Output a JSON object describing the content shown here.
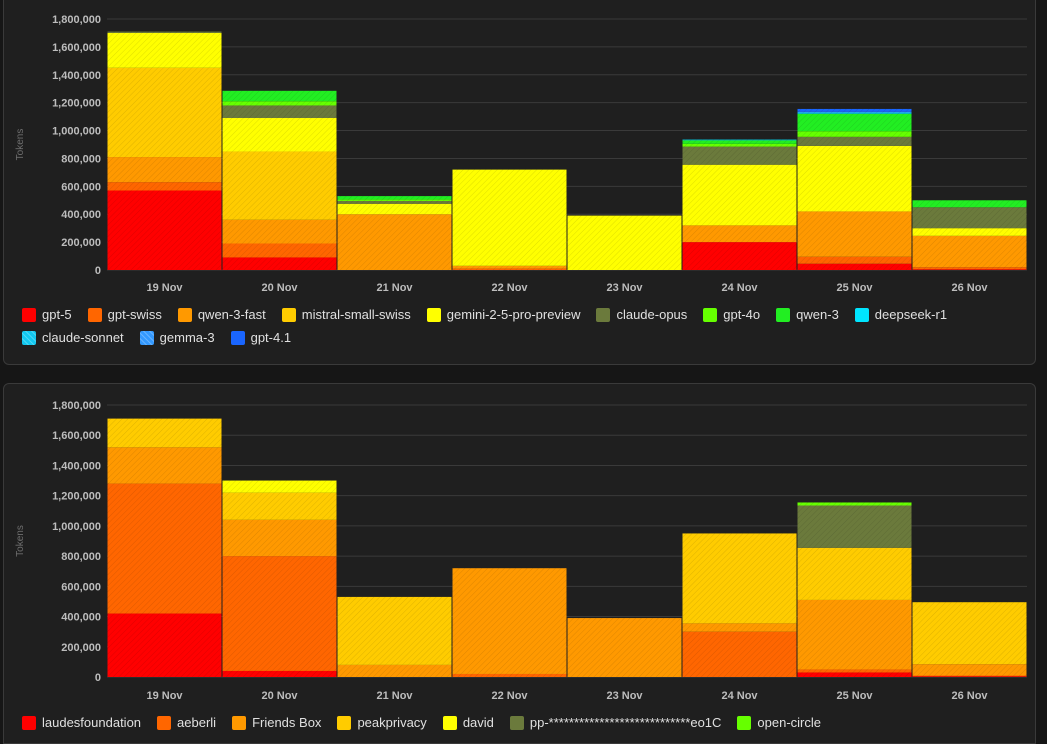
{
  "colors": {
    "grid": "#3a3a3a",
    "axis_text": "#bdbdbd",
    "ylabel_text": "#6e6e6e",
    "panel_bg": "#1f1f1f"
  },
  "chart_data": [
    {
      "type": "bar",
      "stacked": true,
      "title": "",
      "xlabel": "",
      "ylabel": "Tokens",
      "ylim": [
        0,
        1800000
      ],
      "yticks": [
        0,
        200000,
        400000,
        600000,
        800000,
        1000000,
        1200000,
        1400000,
        1600000,
        1800000
      ],
      "ytick_labels": [
        "0",
        "200,000",
        "400,000",
        "600,000",
        "800,000",
        "1,000,000",
        "1,200,000",
        "1,400,000",
        "1,600,000",
        "1,800,000"
      ],
      "categories": [
        "19 Nov",
        "20 Nov",
        "21 Nov",
        "22 Nov",
        "23 Nov",
        "24 Nov",
        "25 Nov",
        "26 Nov"
      ],
      "grid": true,
      "legend_position": "bottom",
      "series": [
        {
          "name": "gpt-5",
          "color": "#ff0000",
          "values": [
            570000,
            90000,
            0,
            0,
            0,
            200000,
            45000,
            5000
          ]
        },
        {
          "name": "gpt-swiss",
          "color": "#ff6600",
          "values": [
            60000,
            100000,
            0,
            10000,
            0,
            0,
            50000,
            15000
          ]
        },
        {
          "name": "qwen-3-fast",
          "color": "#ff9900",
          "values": [
            180000,
            170000,
            400000,
            20000,
            0,
            120000,
            325000,
            225000
          ]
        },
        {
          "name": "mistral-small-swiss",
          "color": "#ffcc00",
          "values": [
            640000,
            490000,
            0,
            0,
            0,
            0,
            0,
            0
          ]
        },
        {
          "name": "gemini-2-5-pro-preview",
          "color": "#ffff00",
          "values": [
            250000,
            240000,
            75000,
            690000,
            390000,
            435000,
            470000,
            55000
          ]
        },
        {
          "name": "claude-opus",
          "color": "#6b7a3c",
          "values": [
            10000,
            90000,
            20000,
            0,
            0,
            130000,
            65000,
            150000
          ]
        },
        {
          "name": "gpt-4o",
          "color": "#66ff00",
          "values": [
            0,
            30000,
            10000,
            0,
            0,
            20000,
            40000,
            0
          ]
        },
        {
          "name": "qwen-3",
          "color": "#22ee22",
          "values": [
            0,
            75000,
            25000,
            0,
            0,
            25000,
            125000,
            50000
          ]
        },
        {
          "name": "deepseek-r1",
          "color": "#00e5ff",
          "values": [
            0,
            0,
            0,
            0,
            0,
            5000,
            5000,
            0
          ]
        },
        {
          "name": "claude-sonnet",
          "color": "#11c8f0",
          "values": [
            0,
            0,
            0,
            0,
            0,
            0,
            5000,
            0
          ]
        },
        {
          "name": "gemma-3",
          "color": "#3399ff",
          "values": [
            0,
            0,
            0,
            0,
            0,
            0,
            5000,
            0
          ]
        },
        {
          "name": "gpt-4.1",
          "color": "#1a66ff",
          "values": [
            0,
            0,
            0,
            0,
            0,
            0,
            20000,
            0
          ]
        }
      ]
    },
    {
      "type": "bar",
      "stacked": true,
      "title": "",
      "xlabel": "",
      "ylabel": "Tokens",
      "ylim": [
        0,
        1800000
      ],
      "yticks": [
        0,
        200000,
        400000,
        600000,
        800000,
        1000000,
        1200000,
        1400000,
        1600000,
        1800000
      ],
      "ytick_labels": [
        "0",
        "200,000",
        "400,000",
        "600,000",
        "800,000",
        "1,000,000",
        "1,200,000",
        "1,400,000",
        "1,600,000",
        "1,800,000"
      ],
      "categories": [
        "19 Nov",
        "20 Nov",
        "21 Nov",
        "22 Nov",
        "23 Nov",
        "24 Nov",
        "25 Nov",
        "26 Nov"
      ],
      "grid": true,
      "legend_position": "bottom",
      "series": [
        {
          "name": "laudesfoundation",
          "color": "#ff0000",
          "values": [
            420000,
            40000,
            0,
            0,
            0,
            0,
            30000,
            5000
          ]
        },
        {
          "name": "aeberli",
          "color": "#ff6600",
          "values": [
            860000,
            760000,
            0,
            20000,
            0,
            300000,
            20000,
            5000
          ]
        },
        {
          "name": "Friends Box",
          "color": "#ff9900",
          "values": [
            240000,
            240000,
            80000,
            700000,
            390000,
            55000,
            460000,
            75000
          ]
        },
        {
          "name": "peakprivacy",
          "color": "#ffcc00",
          "values": [
            190000,
            180000,
            450000,
            0,
            0,
            595000,
            345000,
            410000
          ]
        },
        {
          "name": "david",
          "color": "#ffff00",
          "values": [
            0,
            80000,
            0,
            0,
            0,
            0,
            0,
            0
          ]
        },
        {
          "name": "pp-****************************eo1C",
          "color": "#6b7a3c",
          "values": [
            0,
            0,
            0,
            0,
            0,
            0,
            280000,
            0
          ]
        },
        {
          "name": "open-circle",
          "color": "#66ff00",
          "values": [
            0,
            0,
            0,
            0,
            0,
            0,
            20000,
            0
          ]
        }
      ]
    }
  ]
}
